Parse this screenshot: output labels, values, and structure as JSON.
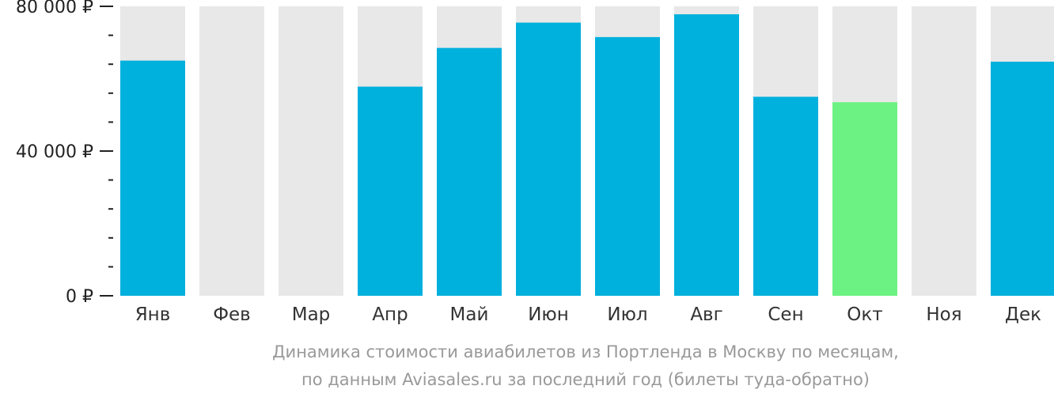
{
  "chart_data": {
    "type": "bar",
    "categories": [
      "Янв",
      "Фев",
      "Мар",
      "Апр",
      "Май",
      "Июн",
      "Июл",
      "Авг",
      "Сен",
      "Окт",
      "Ноя",
      "Дек"
    ],
    "values": [
      65000,
      null,
      null,
      57800,
      68500,
      75500,
      71500,
      77800,
      55000,
      53500,
      null,
      64700
    ],
    "highlight_index": 9,
    "ylim": [
      0,
      80000
    ],
    "yticks": [
      0,
      40000,
      80000
    ],
    "ytick_labels": [
      "0 ₽",
      "40 000 ₽",
      "80 000 ₽"
    ],
    "minor_ticks_per_major": 5,
    "caption_line1": "Динамика стоимости авиабилетов из Портленда в Москву по месяцам,",
    "caption_line2": "по данным Aviasales.ru за последний год (билеты туда-обратно)",
    "colors": {
      "bar": "#00b0dd",
      "highlight": "#6cf282",
      "background_bar": "#e8e8e8",
      "axis": "#222222",
      "caption": "#999999"
    }
  }
}
